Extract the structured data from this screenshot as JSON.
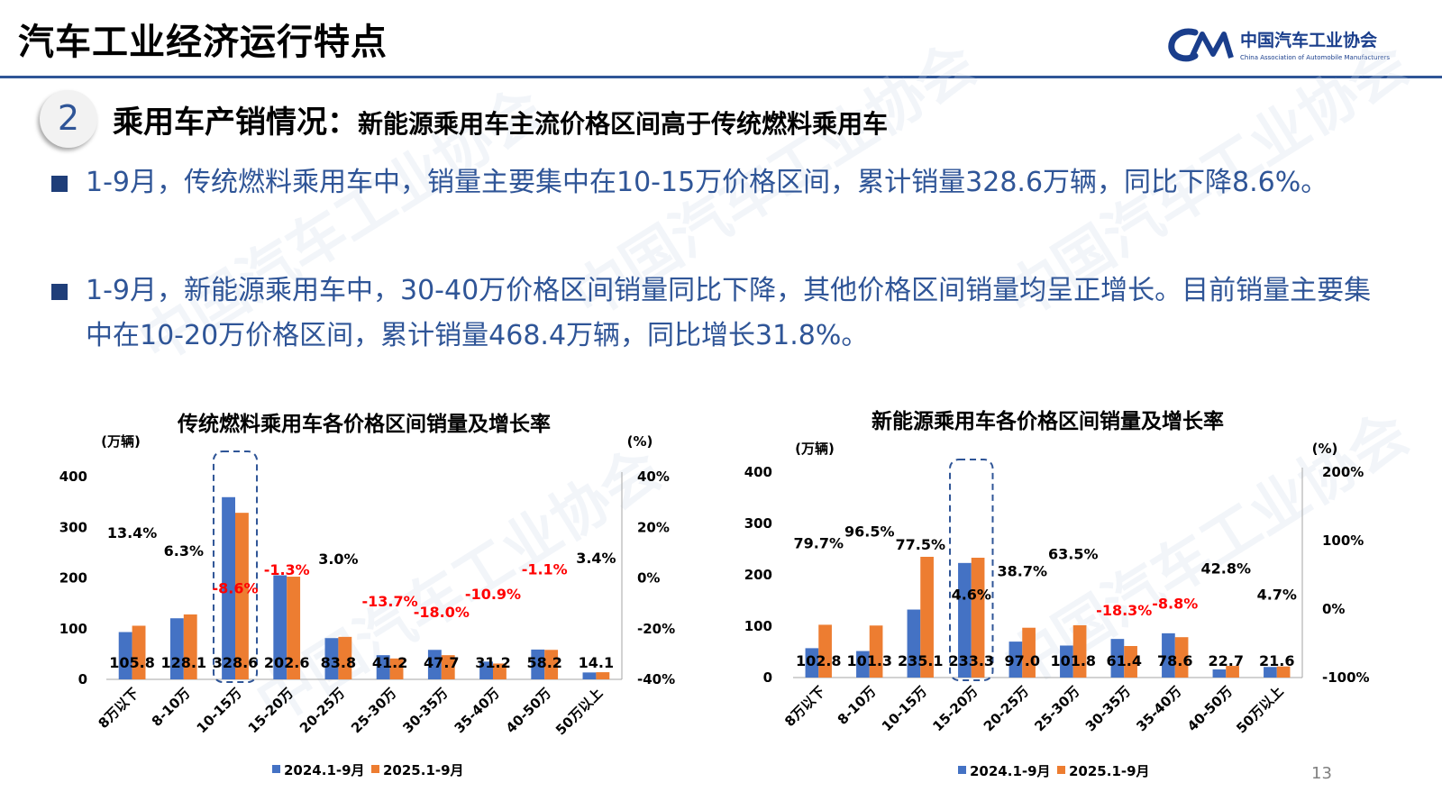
{
  "header": {
    "title": "汽车工业经济运行特点",
    "logo_cn": "中国汽车工业协会",
    "logo_en": "China Association of Automobile Manufacturers"
  },
  "section": {
    "number": "2",
    "title": "乘用车产销情况：",
    "subtitle": "新能源乘用车主流价格区间高于传统燃料乘用车"
  },
  "bullets": [
    "1-9月，传统燃料乘用车中，销量主要集中在10-15万价格区间，累计销量328.6万辆，同比下降8.6%。",
    "1-9月，新能源乘用车中，30-40万价格区间销量同比下降，其他价格区间销量均呈正增长。目前销量主要集中在10-20万价格区间，累计销量468.4万辆，同比增长31.8%。"
  ],
  "page_number": "13",
  "colors": {
    "series_2024": "#4472c4",
    "series_2025": "#ed7d31",
    "negative": "#ff0000",
    "accent": "#2f5597"
  },
  "chart_data": [
    {
      "type": "bar",
      "title": "传统燃料乘用车各价格区间销量及增长率",
      "ylabel": "(万辆)",
      "y2label": "(%)",
      "ylim": [
        0,
        400
      ],
      "yticks": [
        "0",
        "100",
        "200",
        "300",
        "400"
      ],
      "y2lim": [
        -40,
        40
      ],
      "y2ticks": [
        "-40%",
        "-20%",
        "0%",
        "20%",
        "40%"
      ],
      "categories": [
        "8万以下",
        "8-10万",
        "10-15万",
        "15-20万",
        "20-25万",
        "25-30万",
        "30-35万",
        "35-40万",
        "40-50万",
        "50万以上"
      ],
      "series": [
        {
          "name": "2024.1-9月",
          "values": [
            93.3,
            120.5,
            359.5,
            205.3,
            81.4,
            47.7,
            58.2,
            35.0,
            58.8,
            13.6
          ]
        },
        {
          "name": "2025.1-9月",
          "values": [
            105.8,
            128.1,
            328.6,
            202.6,
            83.8,
            41.2,
            47.7,
            31.2,
            58.2,
            14.1
          ]
        }
      ],
      "value_labels": [
        "105.8",
        "128.1",
        "328.6",
        "202.6",
        "83.8",
        "41.2",
        "47.7",
        "31.2",
        "58.2",
        "14.1"
      ],
      "growth_labels": [
        "13.4%",
        "6.3%",
        "-8.6%",
        "-1.3%",
        "3.0%",
        "-13.7%",
        "-18.0%",
        "-10.9%",
        "-1.1%",
        "3.4%"
      ],
      "growth_values": [
        13.4,
        6.3,
        -8.6,
        -1.3,
        3.0,
        -13.7,
        -18.0,
        -10.9,
        -1.1,
        3.4
      ],
      "highlight_category": "10-15万",
      "legend": "bottom"
    },
    {
      "type": "bar",
      "title": "新能源乘用车各价格区间销量及增长率",
      "ylabel": "(万辆)",
      "y2label": "(%)",
      "ylim": [
        0,
        400
      ],
      "yticks": [
        "0",
        "100",
        "200",
        "300",
        "400"
      ],
      "y2lim": [
        -100,
        200
      ],
      "y2ticks": [
        "-100%",
        "0%",
        "100%",
        "200%"
      ],
      "categories": [
        "8万以下",
        "8-10万",
        "10-15万",
        "15-20万",
        "20-25万",
        "25-30万",
        "30-35万",
        "35-40万",
        "40-50万",
        "50万以上"
      ],
      "series": [
        {
          "name": "2024.1-9月",
          "values": [
            57.2,
            51.6,
            132.4,
            223.1,
            70.0,
            62.3,
            75.2,
            86.2,
            15.9,
            20.6
          ]
        },
        {
          "name": "2025.1-9月",
          "values": [
            102.8,
            101.3,
            235.1,
            233.3,
            97.0,
            101.8,
            61.4,
            78.6,
            22.7,
            21.6
          ]
        }
      ],
      "value_labels": [
        "102.8",
        "101.3",
        "235.1",
        "233.3",
        "97.0",
        "101.8",
        "61.4",
        "78.6",
        "22.7",
        "21.6"
      ],
      "growth_labels": [
        "79.7%",
        "96.5%",
        "77.5%",
        "4.6%",
        "38.7%",
        "63.5%",
        "-18.3%",
        "-8.8%",
        "42.8%",
        "4.7%"
      ],
      "growth_values": [
        79.7,
        96.5,
        77.5,
        4.6,
        38.7,
        63.5,
        -18.3,
        -8.8,
        42.8,
        4.7
      ],
      "highlight_category": "15-20万",
      "legend": "bottom"
    }
  ]
}
